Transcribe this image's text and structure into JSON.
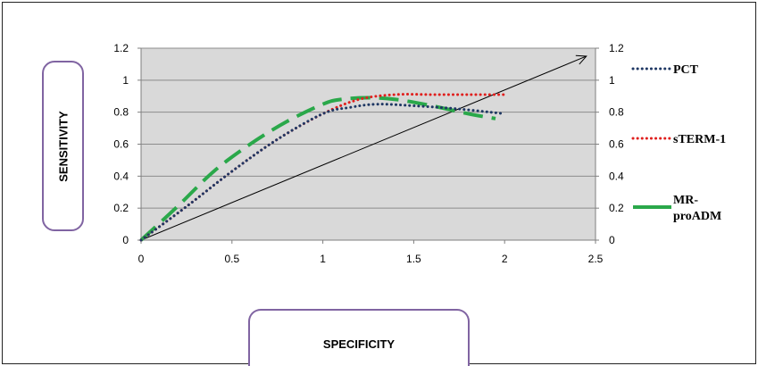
{
  "chart_data": {
    "type": "line",
    "xlabel": "SPECIFICITY",
    "ylabel": "SENSITIVITY",
    "xlim": [
      0,
      2.5
    ],
    "ylim": [
      0,
      1.2
    ],
    "x_ticks": [
      "0",
      "0.5",
      "1",
      "1.5",
      "2",
      "2.5"
    ],
    "y_ticks": [
      "0",
      "0.2",
      "0.4",
      "0.6",
      "0.8",
      "1",
      "1.2"
    ],
    "y2_ticks": [
      "0",
      "0.2",
      "0.4",
      "0.6",
      "0.8",
      "1",
      "1.2"
    ],
    "grid": true,
    "legend_position": "right",
    "series": [
      {
        "name": "PCT",
        "style": "dotted",
        "color": "#1f3864",
        "x": [
          0,
          0.25,
          0.5,
          0.75,
          1.0,
          1.15,
          1.3,
          1.5,
          1.75,
          2.0
        ],
        "y": [
          0,
          0.21,
          0.43,
          0.63,
          0.79,
          0.83,
          0.85,
          0.84,
          0.82,
          0.79
        ]
      },
      {
        "name": "sTERM-1",
        "legend_label": "sTERM-1",
        "style": "dotted",
        "color": "#e0201e",
        "x": [
          0,
          0.25,
          0.5,
          0.75,
          1.0,
          1.2,
          1.4,
          1.6,
          1.8,
          2.0
        ],
        "y": [
          0,
          0.21,
          0.43,
          0.63,
          0.79,
          0.88,
          0.91,
          0.91,
          0.91,
          0.91
        ]
      },
      {
        "name": "MR-proADM",
        "legend_lines": [
          "MR-",
          "proADM"
        ],
        "style": "dashed",
        "color": "#2aa84a",
        "x": [
          0,
          0.2,
          0.4,
          0.6,
          0.8,
          1.0,
          1.1,
          1.25,
          1.4,
          1.6,
          1.8,
          1.95
        ],
        "y": [
          0,
          0.21,
          0.43,
          0.6,
          0.74,
          0.85,
          0.88,
          0.89,
          0.88,
          0.84,
          0.79,
          0.76
        ]
      }
    ],
    "reference_line": {
      "x": [
        0,
        2.45
      ],
      "y": [
        0,
        1.15
      ],
      "arrow": true,
      "color": "#000000"
    }
  }
}
